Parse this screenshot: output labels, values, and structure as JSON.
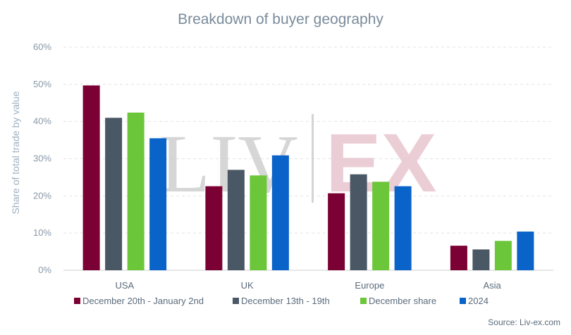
{
  "chart_data": {
    "type": "bar",
    "title": "Breakdown of buyer geography",
    "ylabel": "Share of total trade by value",
    "xlabel": "",
    "ylim": [
      0,
      60
    ],
    "yticks": [
      "0%",
      "10%",
      "20%",
      "30%",
      "40%",
      "50%",
      "60%"
    ],
    "grid": true,
    "legend_position": "bottom",
    "categories": [
      "USA",
      "UK",
      "Europe",
      "Asia"
    ],
    "series": [
      {
        "name": "December 20th - January 2nd",
        "color": "#7b0033",
        "values": [
          49.7,
          22.6,
          20.7,
          6.6
        ]
      },
      {
        "name": "December 13th - 19th",
        "color": "#4a5765",
        "values": [
          41.0,
          27.0,
          25.8,
          5.6
        ]
      },
      {
        "name": "December share",
        "color": "#6cc63a",
        "values": [
          42.4,
          25.5,
          23.8,
          7.9
        ]
      },
      {
        "name": "2024",
        "color": "#0a63c9",
        "values": [
          35.5,
          30.9,
          22.6,
          10.4
        ]
      }
    ],
    "source": "Source: Liv-ex.com",
    "watermark": {
      "left": "LIV",
      "right": "EX"
    }
  }
}
